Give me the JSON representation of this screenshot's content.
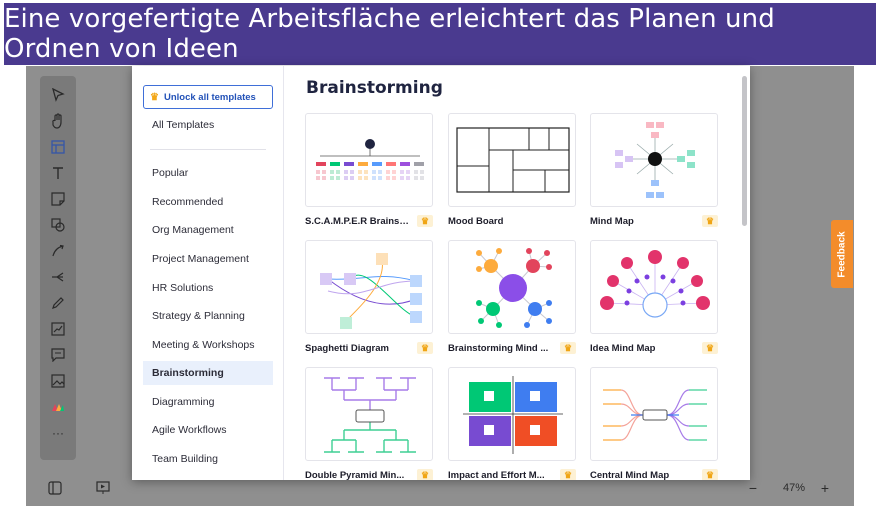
{
  "banner": {
    "title": "Eine vorgefertigte Arbeitsfläche erleichtert das Planen und Ordnen von Ideen"
  },
  "toolbar": {
    "tools": [
      {
        "name": "select",
        "glyph": "➤"
      },
      {
        "name": "hand",
        "glyph": "✋"
      },
      {
        "name": "template",
        "glyph": "▣"
      },
      {
        "name": "text",
        "glyph": "T"
      },
      {
        "name": "sticky-note",
        "glyph": "▭"
      },
      {
        "name": "shape",
        "glyph": "◇"
      },
      {
        "name": "connector",
        "glyph": "↗"
      },
      {
        "name": "mind-map",
        "glyph": "⊰"
      },
      {
        "name": "pen",
        "glyph": "✎"
      },
      {
        "name": "chart",
        "glyph": "▤"
      },
      {
        "name": "comment",
        "glyph": "▢"
      },
      {
        "name": "image",
        "glyph": "▨"
      },
      {
        "name": "apps",
        "glyph": "◢"
      },
      {
        "name": "more",
        "glyph": "···"
      }
    ]
  },
  "bottom_bar": {
    "zoom": "47%",
    "zoom_out": "−",
    "zoom_in": "+"
  },
  "sidebar": {
    "unlock_label": "Unlock all templates",
    "all_templates": "All Templates",
    "items": [
      {
        "label": "Popular"
      },
      {
        "label": "Recommended"
      },
      {
        "label": "Org Management"
      },
      {
        "label": "Project Management"
      },
      {
        "label": "HR Solutions"
      },
      {
        "label": "Strategy & Planning"
      },
      {
        "label": "Meeting & Workshops"
      },
      {
        "label": "Brainstorming"
      },
      {
        "label": "Diagramming"
      },
      {
        "label": "Agile Workflows"
      },
      {
        "label": "Team Building"
      }
    ],
    "active": "Brainstorming"
  },
  "content": {
    "title": "Brainstorming",
    "templates": [
      {
        "name": "S.C.A.M.P.E.R Brainst...",
        "pro": true
      },
      {
        "name": "Mood Board",
        "pro": false
      },
      {
        "name": "Mind Map",
        "pro": true
      },
      {
        "name": "Spaghetti Diagram",
        "pro": true
      },
      {
        "name": "Brainstorming Mind ...",
        "pro": true
      },
      {
        "name": "Idea Mind Map",
        "pro": true
      },
      {
        "name": "Double Pyramid Min...",
        "pro": true
      },
      {
        "name": "Impact and Effort M...",
        "pro": true
      },
      {
        "name": "Central Mind Map",
        "pro": true
      }
    ]
  },
  "feedback": {
    "label": "Feedback"
  },
  "colors": {
    "banner": "#4a3a8f",
    "accent": "#2352b8",
    "feedback": "#f38c2b",
    "pro": "#f0a514"
  }
}
